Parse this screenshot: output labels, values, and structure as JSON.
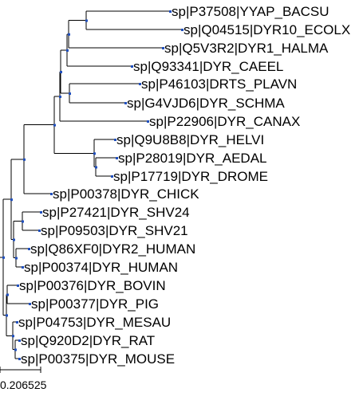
{
  "tree": {
    "leaves": [
      "sp|P37508|YYAP_BACSU",
      "sp|Q04515|DYR10_ECOLX",
      "sp|Q5V3R2|DYR1_HALMA",
      "sp|Q93341|DYR_CAEEL",
      "sp|P46103|DRTS_PLAVN",
      "sp|G4VJD6|DYR_SCHMA",
      "sp|P22906|DYR_CANAX",
      "sp|Q9U8B8|DYR_HELVI",
      "sp|P28019|DYR_AEDAL",
      "sp|P17719|DYR_DROME",
      "sp|P00378|DYR_CHICK",
      "sp|P27421|DYR_SHV24",
      "sp|P09503|DYR_SHV21",
      "sp|Q86XF0|DYR2_HUMAN",
      "sp|P00374|DYR_HUMAN",
      "sp|P00376|DYR_BOVIN",
      "sp|P00377|DYR_PIG",
      "sp|P04753|DYR_MESAU",
      "sp|Q920D2|DYR_RAT",
      "sp|P00375|DYR_MOUSE"
    ],
    "node_color": "#1f4fbf"
  },
  "scale_bar": {
    "label": "0.206525"
  }
}
